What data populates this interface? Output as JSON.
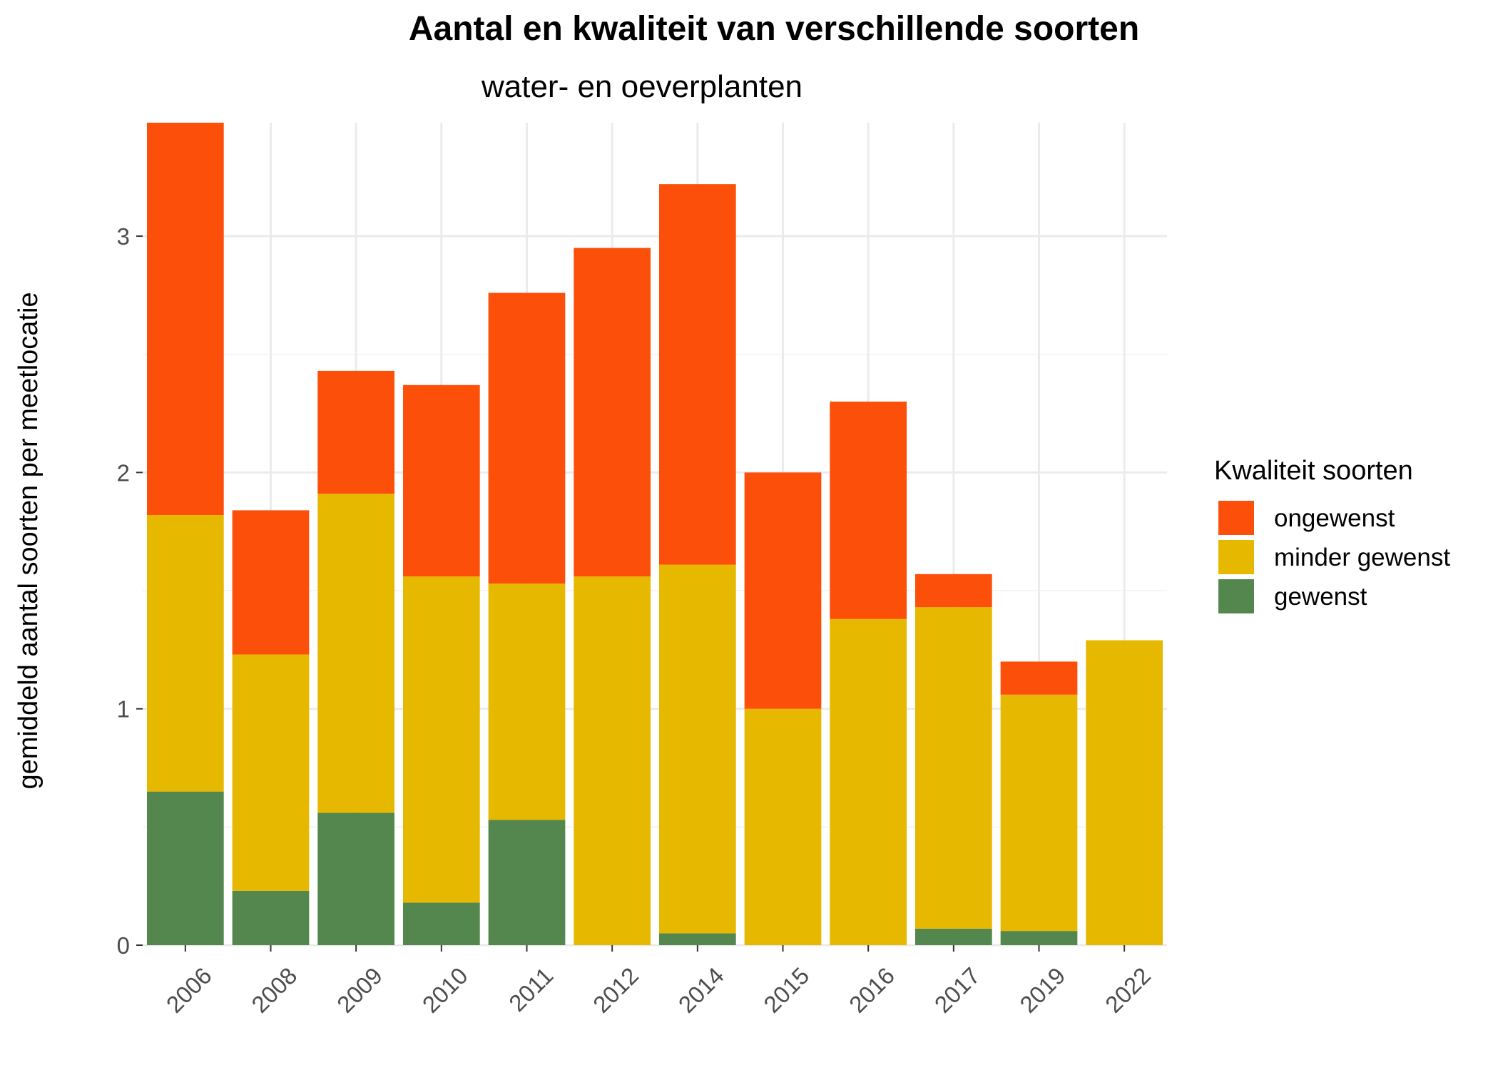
{
  "chart_data": {
    "type": "bar",
    "stacked": true,
    "title": "Aantal en kwaliteit van verschillende soorten",
    "subtitle": "water- en oeverplanten",
    "xlabel": "",
    "ylabel": "gemiddeld aantal soorten per meetlocatie",
    "categories": [
      "2006",
      "2008",
      "2009",
      "2010",
      "2011",
      "2012",
      "2014",
      "2015",
      "2016",
      "2017",
      "2019",
      "2022"
    ],
    "ylim": [
      0,
      3.48
    ],
    "yticks": [
      0,
      1,
      2,
      3
    ],
    "grid": true,
    "legend": {
      "title": "Kwaliteit soorten",
      "position": "right"
    },
    "series": [
      {
        "name": "gewenst",
        "color": "#53874d",
        "values": [
          0.65,
          0.23,
          0.56,
          0.18,
          0.53,
          0,
          0.05,
          0,
          0,
          0.07,
          0.06,
          0
        ]
      },
      {
        "name": "minder gewenst",
        "color": "#e6b800",
        "values": [
          1.17,
          1.0,
          1.35,
          1.38,
          1.0,
          1.56,
          1.56,
          1.0,
          1.38,
          1.36,
          1.0,
          1.29
        ]
      },
      {
        "name": "ongewenst",
        "color": "#fc4f0a",
        "values": [
          1.66,
          0.61,
          0.52,
          0.81,
          1.23,
          1.39,
          1.61,
          1.0,
          0.92,
          0.14,
          0.14,
          0
        ]
      }
    ],
    "legend_order": [
      "ongewenst",
      "minder gewenst",
      "gewenst"
    ]
  }
}
